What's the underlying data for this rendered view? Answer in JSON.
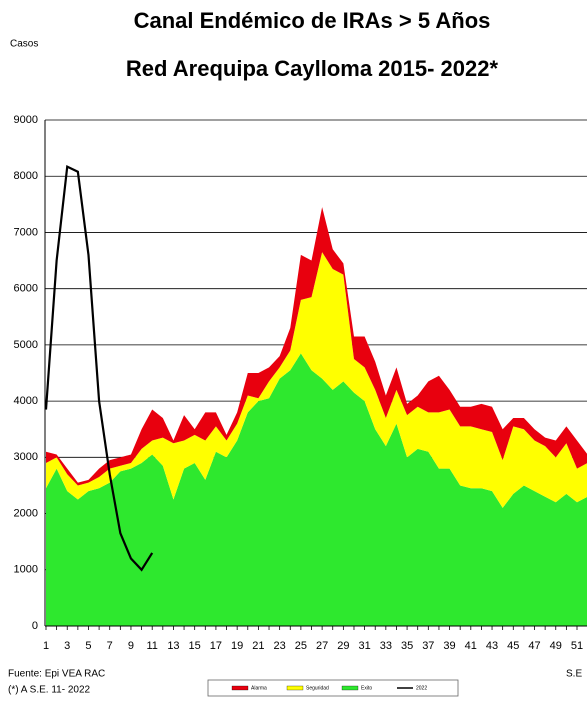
{
  "chart_data": {
    "type": "stacked-area-line",
    "title": "Canal Endémico de IRAs > 5 Años",
    "subtitle": "Red Arequipa Caylloma 2015- 2022*",
    "y_label": "Casos",
    "x_label": "S.E",
    "source": "Fuente: Epi VEA RAC",
    "footnote": "(*) A S.E. 11- 2022",
    "categories": [
      1,
      null,
      3,
      null,
      5,
      null,
      7,
      null,
      9,
      null,
      11,
      null,
      13,
      null,
      15,
      null,
      17,
      null,
      19,
      null,
      21,
      null,
      23,
      null,
      25,
      null,
      27,
      null,
      29,
      null,
      31,
      null,
      33,
      null,
      35,
      null,
      37,
      null,
      39,
      null,
      41,
      null,
      43,
      null,
      45,
      null,
      47,
      null,
      49,
      null,
      51,
      null
    ],
    "ylim": [
      0,
      9000
    ],
    "yticks": [
      0,
      1000,
      2000,
      3000,
      4000,
      5000,
      6000,
      7000,
      8000,
      9000
    ],
    "grid": true,
    "series": [
      {
        "name": "Exito",
        "color": "#2ee82e",
        "stack": true,
        "values": [
          2450,
          2800,
          2400,
          2250,
          2400,
          2450,
          2550,
          2750,
          2800,
          2900,
          3050,
          2850,
          2250,
          2800,
          2900,
          2600,
          3100,
          3000,
          3300,
          3800,
          4000,
          4050,
          4400,
          4550,
          4850,
          4550,
          4400,
          4200,
          4350,
          4150,
          4000,
          3500,
          3200,
          3600,
          3000,
          3150,
          3100,
          2800,
          2800,
          2500,
          2450,
          2450,
          2400,
          2100,
          2350,
          2500,
          2400,
          2300,
          2200,
          2350,
          2200,
          2300
        ]
      },
      {
        "name": "Seguridad",
        "color": "#ffff00",
        "stack": true,
        "values": [
          450,
          200,
          300,
          250,
          150,
          200,
          250,
          100,
          100,
          250,
          250,
          500,
          1000,
          500,
          500,
          700,
          450,
          300,
          300,
          300,
          50,
          300,
          200,
          350,
          950,
          1300,
          2250,
          2150,
          1900,
          600,
          600,
          700,
          500,
          600,
          750,
          750,
          700,
          1000,
          1050,
          1050,
          1100,
          1050,
          1050,
          850,
          1200,
          1000,
          900,
          900,
          800,
          900,
          600,
          600
        ]
      },
      {
        "name": "Alarma",
        "color": "#e8000e",
        "stack": true,
        "values": [
          200,
          50,
          100,
          50,
          50,
          150,
          150,
          150,
          150,
          350,
          550,
          350,
          50,
          450,
          100,
          500,
          250,
          100,
          200,
          400,
          450,
          250,
          200,
          400,
          800,
          650,
          800,
          350,
          200,
          400,
          550,
          500,
          400,
          400,
          200,
          200,
          550,
          650,
          350,
          350,
          350,
          450,
          450,
          550,
          150,
          200,
          200,
          150,
          300,
          300,
          500,
          150
        ]
      },
      {
        "name": "2022",
        "color": "#000000",
        "stack": false,
        "values": [
          3850,
          6500,
          8170,
          8080,
          6600,
          4000,
          2700,
          1650,
          1200,
          1000,
          1300,
          null,
          null,
          null,
          null,
          null,
          null,
          null,
          null,
          null,
          null,
          null,
          null,
          null,
          null,
          null,
          null,
          null,
          null,
          null,
          null,
          null,
          null,
          null,
          null,
          null,
          null,
          null,
          null,
          null,
          null,
          null,
          null,
          null,
          null,
          null,
          null,
          null,
          null,
          null,
          null,
          null
        ]
      }
    ]
  }
}
